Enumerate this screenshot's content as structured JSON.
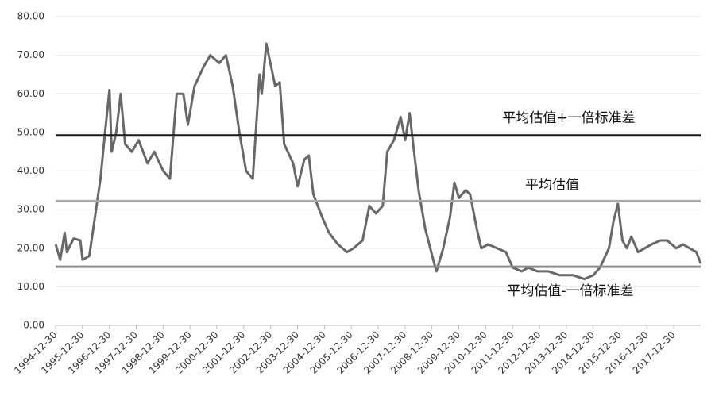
{
  "chart_data": {
    "type": "line",
    "x": [
      "1994-12",
      "1995-02",
      "1995-04",
      "1995-05",
      "1995-08",
      "1995-11",
      "1995-12",
      "1996-03",
      "1996-06",
      "1996-08",
      "1996-10",
      "1996-12",
      "1997-01",
      "1997-03",
      "1997-05",
      "1997-07",
      "1997-10",
      "1998-01",
      "1998-05",
      "1998-08",
      "1998-12",
      "1999-03",
      "1999-06",
      "1999-09",
      "1999-11",
      "2000-02",
      "2000-06",
      "2000-09",
      "2001-01",
      "2001-04",
      "2001-07",
      "2001-10",
      "2002-01",
      "2002-04",
      "2002-07",
      "2002-08",
      "2002-10",
      "2003-02",
      "2003-04",
      "2003-06",
      "2003-10",
      "2003-12",
      "2004-03",
      "2004-05",
      "2004-07",
      "2004-11",
      "2005-02",
      "2005-06",
      "2005-10",
      "2006-01",
      "2006-05",
      "2006-08",
      "2006-11",
      "2007-02",
      "2007-04",
      "2007-07",
      "2007-10",
      "2007-12",
      "2008-02",
      "2008-04",
      "2008-06",
      "2008-09",
      "2009-01",
      "2009-02",
      "2009-05",
      "2009-08",
      "2009-10",
      "2009-12",
      "2010-03",
      "2010-05",
      "2010-08",
      "2010-10",
      "2011-01",
      "2011-05",
      "2011-09",
      "2011-12",
      "2012-04",
      "2012-07",
      "2012-11",
      "2013-04",
      "2013-09",
      "2014-03",
      "2014-08",
      "2014-12",
      "2015-03",
      "2015-07",
      "2015-09",
      "2015-11",
      "2016-01",
      "2016-03",
      "2016-05",
      "2016-08",
      "2016-11",
      "2017-02",
      "2017-06",
      "2017-09",
      "2018-01",
      "2018-04",
      "2018-07",
      "2018-10",
      "2018-12"
    ],
    "values": [
      21,
      17,
      24,
      19,
      22.5,
      22,
      17,
      18,
      30,
      38,
      50,
      61,
      45,
      50,
      60,
      47,
      45,
      48,
      42,
      45,
      40,
      38,
      60,
      60,
      52,
      62,
      67,
      70,
      68,
      70,
      62,
      50,
      40,
      38,
      65,
      60,
      73,
      62,
      63,
      47,
      42,
      36,
      43,
      44,
      34,
      28,
      24,
      21,
      19,
      20,
      22,
      31,
      29,
      31,
      45,
      48,
      54,
      48,
      55,
      45,
      35,
      25,
      16,
      14,
      20,
      28,
      37,
      33,
      35,
      34,
      25,
      20,
      21,
      20,
      19,
      15,
      14,
      15,
      14,
      14,
      13,
      13,
      12,
      13,
      15,
      20,
      27,
      31.5,
      22,
      20,
      23,
      19,
      20,
      21,
      22,
      22,
      20,
      21,
      20,
      19,
      16
    ],
    "color": "#686868",
    "xlim": [
      "1994-12-30",
      "2018-12-30"
    ],
    "xticks": [
      "1994-12-30",
      "1995-12-30",
      "1996-12-30",
      "1997-12-30",
      "1998-12-30",
      "1999-12-30",
      "2000-12-30",
      "2001-12-30",
      "2002-12-30",
      "2003-12-30",
      "2004-12-30",
      "2005-12-30",
      "2006-12-30",
      "2007-12-30",
      "2008-12-30",
      "2009-12-30",
      "2010-12-30",
      "2011-12-30",
      "2012-12-30",
      "2013-12-30",
      "2014-12-30",
      "2015-12-30",
      "2016-12-30",
      "2017-12-30"
    ],
    "ylim": [
      0,
      80
    ],
    "yticks": [
      {
        "value": 0,
        "label": "0.00"
      },
      {
        "value": 10,
        "label": "10.00"
      },
      {
        "value": 20,
        "label": "20.00"
      },
      {
        "value": 30,
        "label": "30.00"
      },
      {
        "value": 40,
        "label": "40.00"
      },
      {
        "value": 50,
        "label": "50.00"
      },
      {
        "value": 60,
        "label": "60.00"
      },
      {
        "value": 70,
        "label": "70.00"
      },
      {
        "value": 80,
        "label": "80.00"
      }
    ],
    "grid": true,
    "reference_lines": [
      {
        "label": "平均估值+一倍标准差",
        "value": 49.2,
        "color": "#1a1a1a"
      },
      {
        "label": "平均估值",
        "value": 32.2,
        "color": "#a8a8a8"
      },
      {
        "label": "平均估值-一倍标准差",
        "value": 15.2,
        "color": "#8c8c8c"
      }
    ]
  }
}
